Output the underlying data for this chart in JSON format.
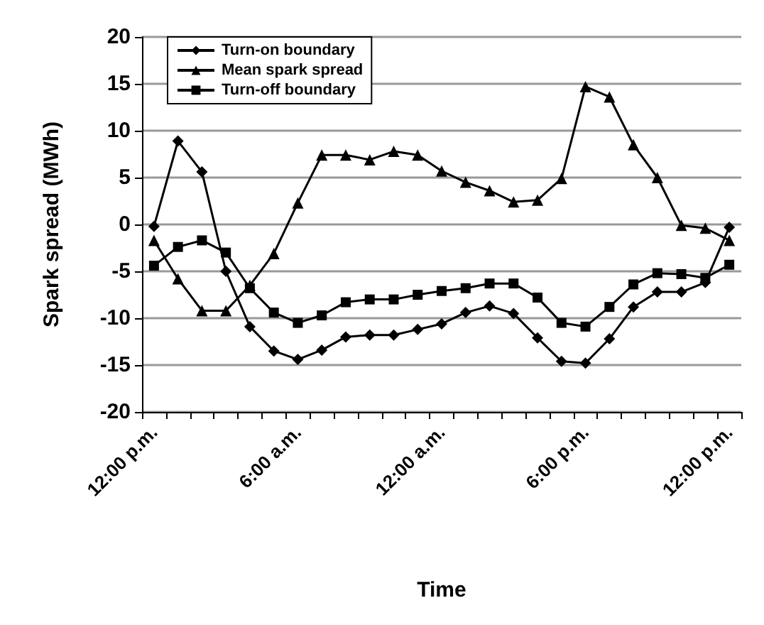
{
  "chart_data": {
    "type": "line",
    "xlabel": "Time",
    "ylabel": "Spark spread (MWh)",
    "categories": [
      "12:00 p.m.",
      null,
      null,
      null,
      null,
      null,
      "6:00 a.m.",
      null,
      null,
      null,
      null,
      null,
      "12:00 a.m.",
      null,
      null,
      null,
      null,
      null,
      "6:00 p.m.",
      null,
      null,
      null,
      null,
      null,
      "12:00 p.m."
    ],
    "series": [
      {
        "name": "Turn-on boundary",
        "color": "#000000",
        "marker": "diamond",
        "values": [
          -0.2,
          8.9,
          5.6,
          -5.0,
          -10.9,
          -13.5,
          -14.4,
          -13.4,
          -12.0,
          -11.8,
          -11.8,
          -11.2,
          -10.6,
          -9.4,
          -8.7,
          -9.5,
          -12.1,
          -14.6,
          -14.8,
          -12.2,
          -8.8,
          -7.2,
          -7.2,
          -6.2,
          -0.3
        ]
      },
      {
        "name": "Mean spark spread",
        "color": "#000000",
        "marker": "triangle",
        "values": [
          -1.7,
          -5.8,
          -9.2,
          -9.2,
          -6.5,
          -3.1,
          2.3,
          7.4,
          7.4,
          6.9,
          7.8,
          7.4,
          5.7,
          4.5,
          3.6,
          2.4,
          2.6,
          4.9,
          14.7,
          13.6,
          8.5,
          5.0,
          -0.1,
          -0.4,
          -1.7
        ]
      },
      {
        "name": "Turn-off boundary",
        "color": "#000000",
        "marker": "square",
        "values": [
          -4.4,
          -2.4,
          -1.7,
          -3.0,
          -6.8,
          -9.4,
          -10.5,
          -9.7,
          -8.3,
          -8.0,
          -8.0,
          -7.5,
          -7.1,
          -6.8,
          -6.3,
          -6.3,
          -7.8,
          -10.5,
          -10.9,
          -8.8,
          -6.4,
          -5.2,
          -5.3,
          -5.7,
          -4.3
        ]
      }
    ],
    "ylim": [
      -20,
      20
    ],
    "yticks": [
      -20,
      -15,
      -10,
      -5,
      0,
      5,
      10,
      15,
      20
    ],
    "grid": "y",
    "legend": "top left",
    "line_style": "solid"
  }
}
